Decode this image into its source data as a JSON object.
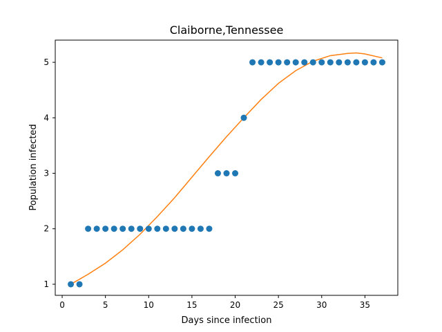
{
  "chart_data": {
    "type": "scatter",
    "title": "Claiborne,Tennessee",
    "xlabel": "Days since infection",
    "ylabel": "Population infected",
    "xlim": [
      -0.8,
      38.8
    ],
    "ylim": [
      0.8,
      5.4
    ],
    "xticks": [
      0,
      5,
      10,
      15,
      20,
      25,
      30,
      35
    ],
    "yticks": [
      1,
      2,
      3,
      4,
      5
    ],
    "grid": false,
    "colors": {
      "points": "#1f77b4",
      "fit": "#ff7f0e"
    },
    "series": [
      {
        "type": "scatter",
        "x": [
          1,
          2,
          3,
          4,
          5,
          6,
          7,
          8,
          9,
          10,
          11,
          12,
          13,
          14,
          15,
          16,
          17,
          18,
          19,
          20,
          21,
          22,
          23,
          24,
          25,
          26,
          27,
          28,
          29,
          30,
          31,
          32,
          33,
          34,
          35,
          36,
          37
        ],
        "y": [
          1,
          1,
          2,
          2,
          2,
          2,
          2,
          2,
          2,
          2,
          2,
          2,
          2,
          2,
          2,
          2,
          2,
          3,
          3,
          3,
          4,
          5,
          5,
          5,
          5,
          5,
          5,
          5,
          5,
          5,
          5,
          5,
          5,
          5,
          5,
          5,
          5
        ]
      },
      {
        "type": "line",
        "x": [
          1,
          3,
          5,
          7,
          9,
          11,
          13,
          15,
          17,
          19,
          21,
          23,
          25,
          27,
          29,
          31,
          33,
          34,
          35,
          37
        ],
        "y": [
          1.0,
          1.18,
          1.38,
          1.62,
          1.9,
          2.22,
          2.56,
          2.93,
          3.3,
          3.66,
          4.0,
          4.33,
          4.62,
          4.85,
          5.02,
          5.12,
          5.16,
          5.17,
          5.15,
          5.08
        ]
      }
    ]
  }
}
